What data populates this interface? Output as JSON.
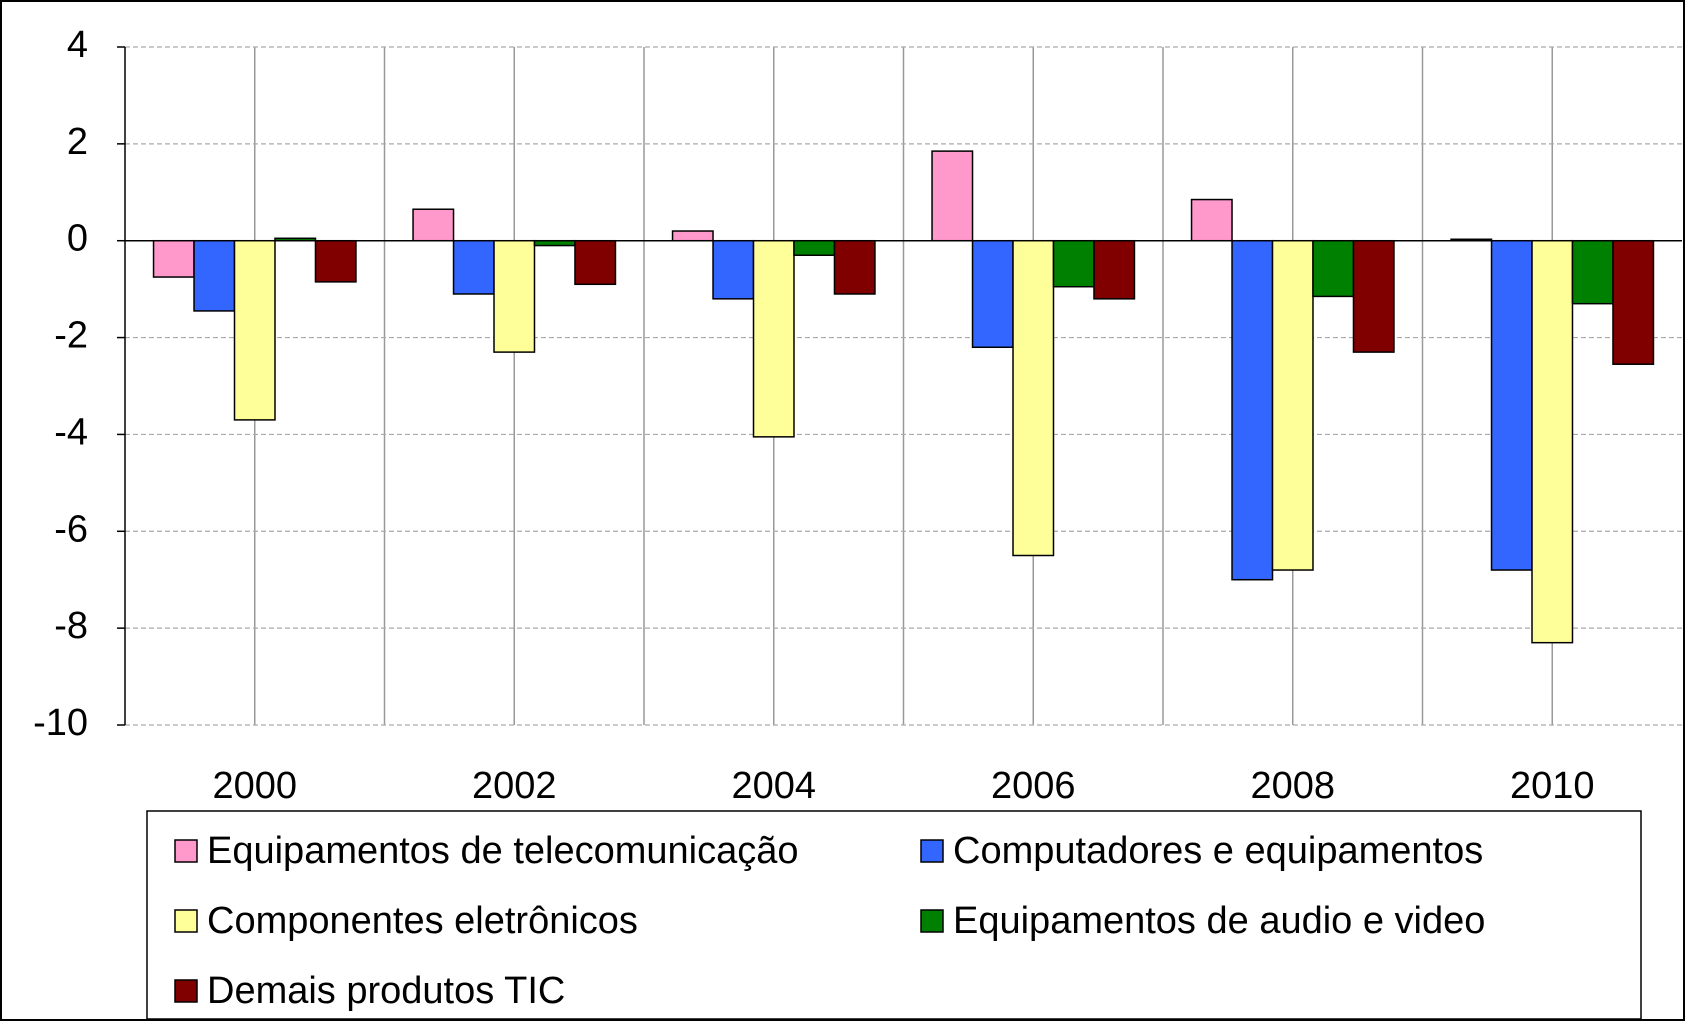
{
  "chart_data": {
    "type": "bar",
    "categories": [
      "2000",
      "2002",
      "2004",
      "2006",
      "2008",
      "2010"
    ],
    "series": [
      {
        "name": "Equipamentos de telecomunicação",
        "color": "#ff99cc",
        "values": [
          -0.75,
          0.65,
          0.2,
          1.85,
          0.85,
          0.03
        ]
      },
      {
        "name": "Computadores e equipamentos",
        "color": "#3366ff",
        "values": [
          -1.45,
          -1.1,
          -1.2,
          -2.2,
          -7.0,
          -6.8
        ]
      },
      {
        "name": "Componentes eletrônicos",
        "color": "#ffff99",
        "values": [
          -3.7,
          -2.3,
          -4.05,
          -6.5,
          -6.8,
          -8.3
        ]
      },
      {
        "name": "Equipamentos de audio e video",
        "color": "#008000",
        "values": [
          0.05,
          -0.1,
          -0.3,
          -0.95,
          -1.15,
          -1.3
        ]
      },
      {
        "name": "Demais produtos TIC",
        "color": "#800000",
        "values": [
          -0.85,
          -0.9,
          -1.1,
          -1.2,
          -2.3,
          -2.55
        ]
      }
    ],
    "ylim": [
      -10,
      4
    ],
    "yticks": [
      -10,
      -8,
      -6,
      -4,
      -2,
      0,
      2,
      4
    ],
    "grid": true,
    "legend": "bottom"
  }
}
